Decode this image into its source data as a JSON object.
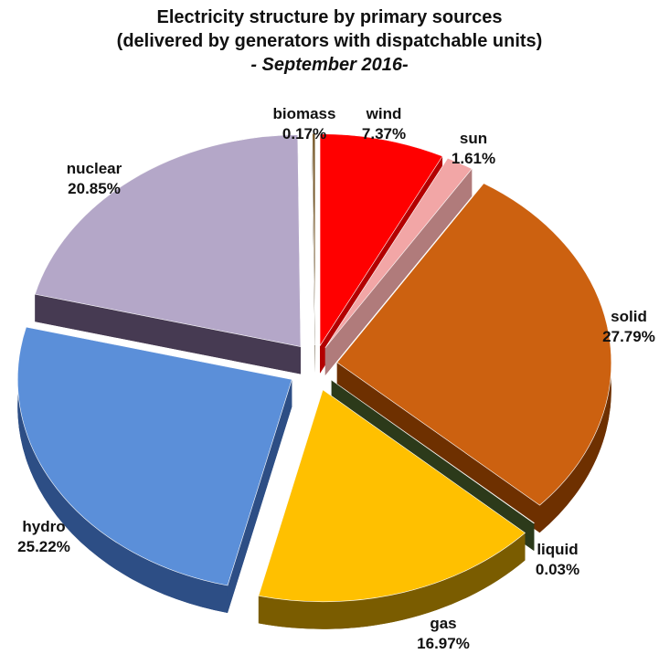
{
  "chart_data": {
    "type": "pie",
    "title_lines": [
      "Electricity structure by primary sources",
      "(delivered by generators with dispatchable units)",
      "- September 2016-"
    ],
    "slices": [
      {
        "name": "wind",
        "value": 7.37,
        "label": "7.37%",
        "color": "#ff0000",
        "side": "#b30000"
      },
      {
        "name": "sun",
        "value": 1.61,
        "label": "1.61%",
        "color": "#f2a6a6",
        "side": "#b07b7b"
      },
      {
        "name": "solid",
        "value": 27.79,
        "label": "27.79%",
        "color": "#cc6110",
        "side": "#6e3000"
      },
      {
        "name": "liquid",
        "value": 0.03,
        "label": "0.03%",
        "color": "#455a2a",
        "side": "#2c3a1a"
      },
      {
        "name": "gas",
        "value": 16.97,
        "label": "16.97%",
        "color": "#ffc000",
        "side": "#7a5c00"
      },
      {
        "name": "hydro",
        "value": 25.22,
        "label": "25.22%",
        "color": "#5b8fd9",
        "side": "#2d4e85"
      },
      {
        "name": "nuclear",
        "value": 20.85,
        "label": "20.85%",
        "color": "#b4a7c8",
        "side": "#463a52"
      },
      {
        "name": "biomass",
        "value": 0.17,
        "label": "0.17%",
        "color": "#7a5c2e",
        "side": "#4a3618"
      }
    ],
    "legend": "none",
    "style": "3d-exploded"
  }
}
